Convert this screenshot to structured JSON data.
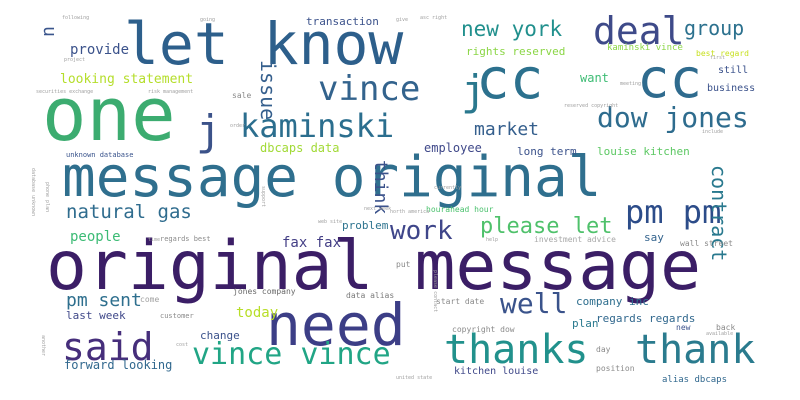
{
  "words": [
    {
      "id": "original-message-big",
      "text": "original message",
      "color": "#3b1e66"
    },
    {
      "id": "message-original",
      "text": "message original",
      "color": "#2f6f8e"
    },
    {
      "id": "let-know",
      "text": "let know",
      "color": "#2d5f8b"
    },
    {
      "id": "one",
      "text": "one",
      "color": "#3cac70"
    },
    {
      "id": "cc-1",
      "text": "cc",
      "color": "#2c718e"
    },
    {
      "id": "cc-2",
      "text": "cc",
      "color": "#2f6b8e"
    },
    {
      "id": "need",
      "text": "need",
      "color": "#3c3e86"
    },
    {
      "id": "j-left",
      "text": "j",
      "color": "#3b5289"
    },
    {
      "id": "j-mid",
      "text": "j",
      "color": "#2a788e"
    },
    {
      "id": "kaminski",
      "text": "kaminski",
      "color": "#2b6e8e"
    },
    {
      "id": "vince",
      "text": "vince",
      "color": "#33638d"
    },
    {
      "id": "deal",
      "text": "deal",
      "color": "#3e4a89"
    },
    {
      "id": "group",
      "text": "group",
      "color": "#2c718e"
    },
    {
      "id": "new-york",
      "text": "new york",
      "color": "#21908d"
    },
    {
      "id": "dow-jones",
      "text": "dow jones",
      "color": "#2e6c8e"
    },
    {
      "id": "pm-pm",
      "text": "pm pm",
      "color": "#2c4c89"
    },
    {
      "id": "thanks",
      "text": "thanks",
      "color": "#21918c"
    },
    {
      "id": "thank",
      "text": "thank",
      "color": "#2a7b8e"
    },
    {
      "id": "said",
      "text": "said",
      "color": "#462e7b"
    },
    {
      "id": "vince-vince",
      "text": "vince vince",
      "color": "#21a585"
    },
    {
      "id": "well",
      "text": "well",
      "color": "#3a538b"
    },
    {
      "id": "work",
      "text": "work",
      "color": "#3f468a"
    },
    {
      "id": "please-let",
      "text": "please let",
      "color": "#4fc16b"
    },
    {
      "id": "natural-gas",
      "text": "natural gas",
      "color": "#2f6c8e"
    },
    {
      "id": "market",
      "text": "market",
      "color": "#355f8d"
    },
    {
      "id": "issue",
      "text": "issue",
      "color": "#355f8d"
    },
    {
      "id": "u",
      "text": "u",
      "color": "#3a558c"
    },
    {
      "id": "contract",
      "text": "contract",
      "color": "#29798e"
    },
    {
      "id": "think",
      "text": "think",
      "color": "#3b528b"
    },
    {
      "id": "pm-sent",
      "text": "pm sent",
      "color": "#2e6f8e"
    },
    {
      "id": "provide",
      "text": "provide",
      "color": "#3b528b"
    },
    {
      "id": "looking-statement",
      "text": "looking statement",
      "color": "#b5de2b"
    },
    {
      "id": "transaction",
      "text": "transaction",
      "color": "#3b528b"
    },
    {
      "id": "rights-reserved",
      "text": "rights reserved",
      "color": "#8bd646"
    },
    {
      "id": "kaminski-vince",
      "text": "kaminski vince",
      "color": "#8bd646"
    },
    {
      "id": "best-regard",
      "text": "best regard",
      "color": "#c7e020"
    },
    {
      "id": "want",
      "text": "want",
      "color": "#3dbc74"
    },
    {
      "id": "employee",
      "text": "employee",
      "color": "#3f4889"
    },
    {
      "id": "dbcaps-data",
      "text": "dbcaps data",
      "color": "#a2da37"
    },
    {
      "id": "long-term",
      "text": "long term",
      "color": "#3b528b"
    },
    {
      "id": "louise-kitchen",
      "text": "louise kitchen",
      "color": "#5cc863"
    },
    {
      "id": "unknown-database",
      "text": "unknown database",
      "color": "#3a548c"
    },
    {
      "id": "business",
      "text": "business",
      "color": "#3b528b"
    },
    {
      "id": "still",
      "text": "still",
      "color": "#3b528b"
    },
    {
      "id": "fax-fax",
      "text": "fax fax",
      "color": "#433e85"
    },
    {
      "id": "problem",
      "text": "problem",
      "color": "#2c738e"
    },
    {
      "id": "people",
      "text": "people",
      "color": "#3cbb75"
    },
    {
      "id": "hourahead-hour",
      "text": "hourahead hour",
      "color": "#4ac16d"
    },
    {
      "id": "say",
      "text": "say",
      "color": "#33638d"
    },
    {
      "id": "regards-best",
      "text": "regards best",
      "color": "#8a8a8a"
    },
    {
      "id": "investment-advice",
      "text": "investment advice",
      "color": "#a8a8a8"
    },
    {
      "id": "wall-street",
      "text": "wall street",
      "color": "#8a8a8a"
    },
    {
      "id": "today",
      "text": "today",
      "color": "#b8de29"
    },
    {
      "id": "last-week",
      "text": "last week",
      "color": "#3f4889"
    },
    {
      "id": "jones-company",
      "text": "jones company",
      "color": "#6a6a6a"
    },
    {
      "id": "data-alias",
      "text": "data alias",
      "color": "#7a7a7a"
    },
    {
      "id": "company-inc",
      "text": "company inc",
      "color": "#2e6e8e"
    },
    {
      "id": "regards-regards",
      "text": "regards regards",
      "color": "#31688e"
    },
    {
      "id": "change",
      "text": "change",
      "color": "#3b528b"
    },
    {
      "id": "start-date",
      "text": "start date",
      "color": "#8a8a8a"
    },
    {
      "id": "copyright-dow",
      "text": "copyright dow",
      "color": "#8a8a8a"
    },
    {
      "id": "plan",
      "text": "plan",
      "color": "#29798e"
    },
    {
      "id": "new",
      "text": "new",
      "color": "#3b528b"
    },
    {
      "id": "forward-looking",
      "text": "forward looking",
      "color": "#31688e"
    },
    {
      "id": "kitchen-louise",
      "text": "kitchen louise",
      "color": "#3f4889"
    },
    {
      "id": "position",
      "text": "position",
      "color": "#8a8a8a"
    },
    {
      "id": "alias-dbcaps",
      "text": "alias dbcaps",
      "color": "#31688e"
    },
    {
      "id": "day",
      "text": "day",
      "color": "#8a8a8a"
    },
    {
      "id": "customer",
      "text": "customer",
      "color": "#8a8a8a"
    },
    {
      "id": "put",
      "text": "put",
      "color": "#8a8a8a"
    },
    {
      "id": "back",
      "text": "back",
      "color": "#8a8a8a"
    },
    {
      "id": "sale",
      "text": "sale",
      "color": "#8a8a8a"
    },
    {
      "id": "following",
      "text": "following",
      "color": "#a0a0a0"
    },
    {
      "id": "going",
      "text": "going",
      "color": "#a0a0a0"
    },
    {
      "id": "give",
      "text": "give",
      "color": "#a0a0a0"
    },
    {
      "id": "asc-right",
      "text": "asc right",
      "color": "#a0a0a0"
    },
    {
      "id": "project",
      "text": "project",
      "color": "#a0a0a0"
    },
    {
      "id": "risk-management",
      "text": "risk management",
      "color": "#a0a0a0"
    },
    {
      "id": "securities-exchange",
      "text": "securities exchange",
      "color": "#a0a0a0"
    },
    {
      "id": "reserved-copyright",
      "text": "reserved copyright",
      "color": "#a0a0a0"
    },
    {
      "id": "meeting",
      "text": "meeting",
      "color": "#a0a0a0"
    },
    {
      "id": "database-unknown",
      "text": "database unknown",
      "color": "#a0a0a0"
    },
    {
      "id": "phone-plan",
      "text": "phone plan",
      "color": "#a0a0a0"
    },
    {
      "id": "first",
      "text": "first",
      "color": "#a0a0a0"
    },
    {
      "id": "currently",
      "text": "currently",
      "color": "#a0a0a0"
    },
    {
      "id": "north-america",
      "text": "north america",
      "color": "#a0a0a0"
    },
    {
      "id": "next-week",
      "text": "next week",
      "color": "#a0a0a0"
    },
    {
      "id": "web-site",
      "text": "web site",
      "color": "#a0a0a0"
    },
    {
      "id": "united-state",
      "text": "united state",
      "color": "#a0a0a0"
    },
    {
      "id": "another",
      "text": "another",
      "color": "#a0a0a0"
    },
    {
      "id": "include",
      "text": "include",
      "color": "#a0a0a0"
    },
    {
      "id": "available",
      "text": "available",
      "color": "#a0a0a0"
    },
    {
      "id": "help",
      "text": "help",
      "color": "#a0a0a0"
    },
    {
      "id": "cost",
      "text": "cost",
      "color": "#a0a0a0"
    },
    {
      "id": "time",
      "text": "time",
      "color": "#a0a0a0"
    },
    {
      "id": "order",
      "text": "order",
      "color": "#a0a0a0"
    },
    {
      "id": "come",
      "text": "come",
      "color": "#a0a0a0"
    },
    {
      "id": "please-contact",
      "text": "please contact",
      "color": "#a0a0a0"
    },
    {
      "id": "support",
      "text": "support",
      "color": "#a0a0a0"
    }
  ]
}
